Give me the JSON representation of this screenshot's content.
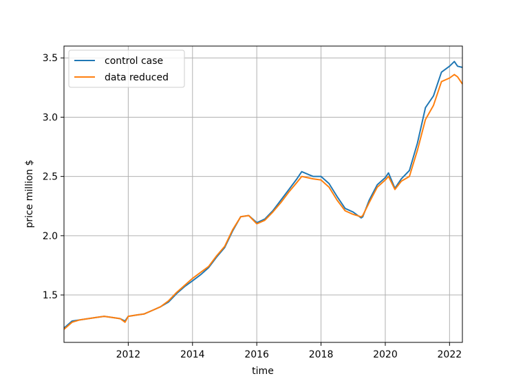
{
  "chart_data": {
    "type": "line",
    "title": "",
    "xlabel": "time",
    "ylabel": "price million $",
    "xlim": [
      2010.0,
      2022.4
    ],
    "ylim": [
      1.1,
      3.6
    ],
    "x_ticks": [
      2012,
      2014,
      2016,
      2018,
      2020,
      2022
    ],
    "y_ticks": [
      1.5,
      2.0,
      2.5,
      3.0,
      3.5
    ],
    "x_tick_labels": [
      "2012",
      "2014",
      "2016",
      "2018",
      "2020",
      "2022"
    ],
    "y_tick_labels": [
      "1.5",
      "2.0",
      "2.5",
      "3.0",
      "3.5"
    ],
    "grid": true,
    "legend_position": "top-left",
    "x": [
      2010.0,
      2010.25,
      2010.5,
      2010.75,
      2011.0,
      2011.25,
      2011.5,
      2011.75,
      2011.9,
      2012.0,
      2012.25,
      2012.5,
      2012.75,
      2013.0,
      2013.25,
      2013.5,
      2013.75,
      2014.0,
      2014.25,
      2014.5,
      2014.75,
      2015.0,
      2015.25,
      2015.5,
      2015.75,
      2016.0,
      2016.25,
      2016.5,
      2016.75,
      2017.0,
      2017.25,
      2017.4,
      2017.75,
      2018.0,
      2018.25,
      2018.5,
      2018.75,
      2019.0,
      2019.25,
      2019.3,
      2019.5,
      2019.75,
      2020.0,
      2020.1,
      2020.3,
      2020.5,
      2020.75,
      2021.0,
      2021.25,
      2021.5,
      2021.75,
      2022.0,
      2022.15,
      2022.25,
      2022.4
    ],
    "series": [
      {
        "name": "control case",
        "color": "#1f77b4",
        "values": [
          1.22,
          1.28,
          1.29,
          1.3,
          1.31,
          1.32,
          1.31,
          1.3,
          1.28,
          1.32,
          1.33,
          1.34,
          1.37,
          1.4,
          1.44,
          1.51,
          1.57,
          1.62,
          1.67,
          1.73,
          1.82,
          1.9,
          2.04,
          2.16,
          2.17,
          2.11,
          2.14,
          2.21,
          2.3,
          2.39,
          2.48,
          2.54,
          2.5,
          2.5,
          2.44,
          2.33,
          2.23,
          2.2,
          2.15,
          2.16,
          2.3,
          2.43,
          2.49,
          2.53,
          2.4,
          2.48,
          2.55,
          2.78,
          3.08,
          3.18,
          3.38,
          3.43,
          3.47,
          3.43,
          3.42
        ]
      },
      {
        "name": "data reduced",
        "color": "#ff7f0e",
        "values": [
          1.21,
          1.27,
          1.29,
          1.3,
          1.31,
          1.32,
          1.31,
          1.3,
          1.27,
          1.32,
          1.33,
          1.34,
          1.37,
          1.4,
          1.45,
          1.52,
          1.58,
          1.64,
          1.69,
          1.74,
          1.83,
          1.91,
          2.05,
          2.16,
          2.17,
          2.1,
          2.13,
          2.2,
          2.28,
          2.37,
          2.45,
          2.5,
          2.48,
          2.47,
          2.41,
          2.3,
          2.21,
          2.18,
          2.16,
          2.17,
          2.28,
          2.41,
          2.47,
          2.5,
          2.39,
          2.46,
          2.5,
          2.72,
          2.98,
          3.1,
          3.3,
          3.33,
          3.36,
          3.34,
          3.28
        ]
      }
    ]
  }
}
